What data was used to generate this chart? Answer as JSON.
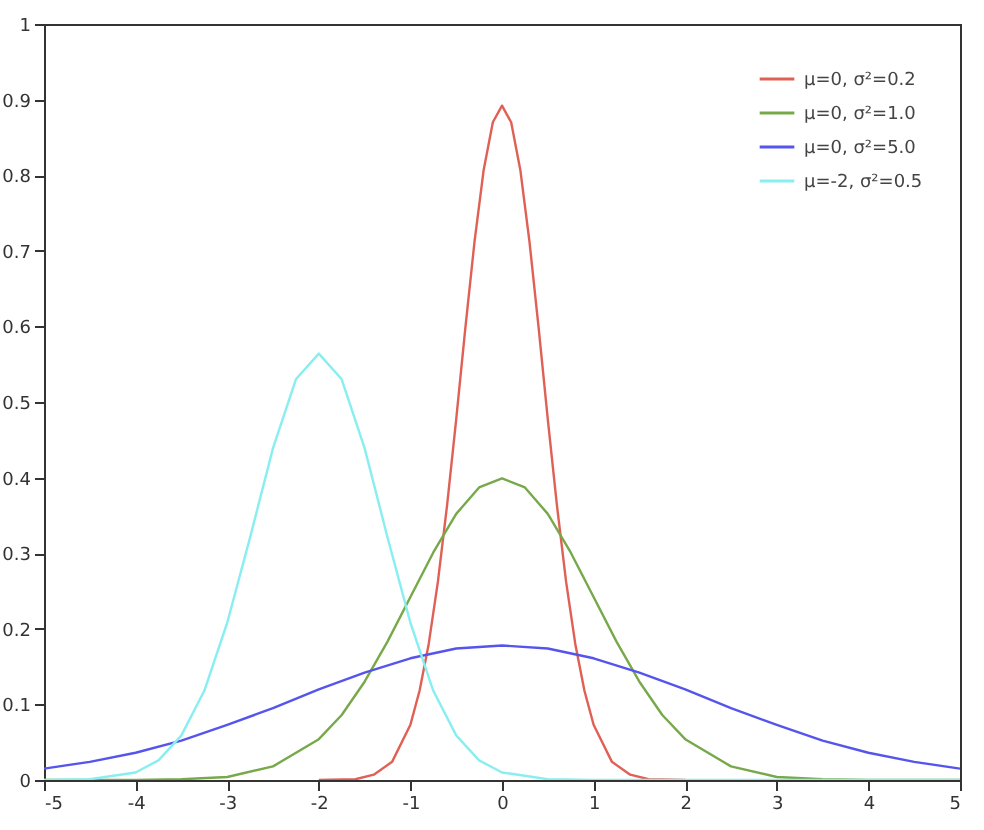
{
  "chart_data": {
    "type": "line",
    "xlim": [
      -5,
      5
    ],
    "ylim": [
      0,
      1
    ],
    "xticks": [
      -5,
      -4,
      -3,
      -2,
      -1,
      0,
      1,
      2,
      3,
      4,
      5
    ],
    "yticks": [
      0,
      0.1,
      0.2,
      0.3,
      0.4,
      0.5,
      0.6,
      0.7,
      0.8,
      0.9,
      1
    ],
    "grid": false,
    "legend": "top right",
    "series": [
      {
        "name": "μ=0, σ²=0.2",
        "color": "#e06055",
        "x": [
          -2,
          -1.6,
          -1.4,
          -1.2,
          -1,
          -0.9,
          -0.8,
          -0.7,
          -0.6,
          -0.5,
          -0.4,
          -0.3,
          -0.2,
          -0.1,
          0,
          0.1,
          0.2,
          0.3,
          0.4,
          0.5,
          0.6,
          0.7,
          0.8,
          0.9,
          1,
          1.2,
          1.4,
          1.6,
          2
        ],
        "values": [
          0,
          0.001,
          0.007,
          0.024,
          0.073,
          0.118,
          0.18,
          0.262,
          0.363,
          0.477,
          0.598,
          0.712,
          0.807,
          0.87,
          0.892,
          0.87,
          0.807,
          0.712,
          0.598,
          0.477,
          0.363,
          0.262,
          0.18,
          0.118,
          0.073,
          0.024,
          0.007,
          0.001,
          0
        ]
      },
      {
        "name": "μ=0, σ²=1.0",
        "color": "#77a94a",
        "x": [
          -5,
          -4,
          -3.5,
          -3,
          -2.5,
          -2,
          -1.75,
          -1.5,
          -1.25,
          -1,
          -0.75,
          -0.5,
          -0.25,
          0,
          0.25,
          0.5,
          0.75,
          1,
          1.25,
          1.5,
          1.75,
          2,
          2.5,
          3,
          3.5,
          4,
          5
        ],
        "values": [
          0,
          0,
          0.001,
          0.004,
          0.018,
          0.054,
          0.086,
          0.13,
          0.183,
          0.242,
          0.301,
          0.352,
          0.387,
          0.399,
          0.387,
          0.352,
          0.301,
          0.242,
          0.183,
          0.13,
          0.086,
          0.054,
          0.018,
          0.004,
          0.001,
          0,
          0
        ]
      },
      {
        "name": "μ=0, σ²=5.0",
        "color": "#5555ee",
        "x": [
          -5,
          -4.5,
          -4,
          -3.5,
          -3,
          -2.5,
          -2,
          -1.5,
          -1,
          -0.5,
          0,
          0.5,
          1,
          1.5,
          2,
          2.5,
          3,
          3.5,
          4,
          4.5,
          5
        ],
        "values": [
          0.015,
          0.024,
          0.036,
          0.052,
          0.073,
          0.095,
          0.12,
          0.142,
          0.161,
          0.174,
          0.178,
          0.174,
          0.161,
          0.142,
          0.12,
          0.095,
          0.073,
          0.052,
          0.036,
          0.024,
          0.015
        ]
      },
      {
        "name": "μ=-2, σ²=0.5",
        "color": "#88eef0",
        "x": [
          -5,
          -4.5,
          -4,
          -3.75,
          -3.5,
          -3.25,
          -3,
          -2.75,
          -2.5,
          -2.25,
          -2,
          -1.75,
          -1.5,
          -1.25,
          -1,
          -0.75,
          -0.5,
          -0.25,
          0,
          0.5,
          1,
          5
        ],
        "values": [
          0,
          0.001,
          0.01,
          0.026,
          0.059,
          0.118,
          0.208,
          0.321,
          0.439,
          0.53,
          0.564,
          0.53,
          0.439,
          0.321,
          0.208,
          0.118,
          0.059,
          0.026,
          0.01,
          0.001,
          0,
          0
        ]
      }
    ]
  }
}
